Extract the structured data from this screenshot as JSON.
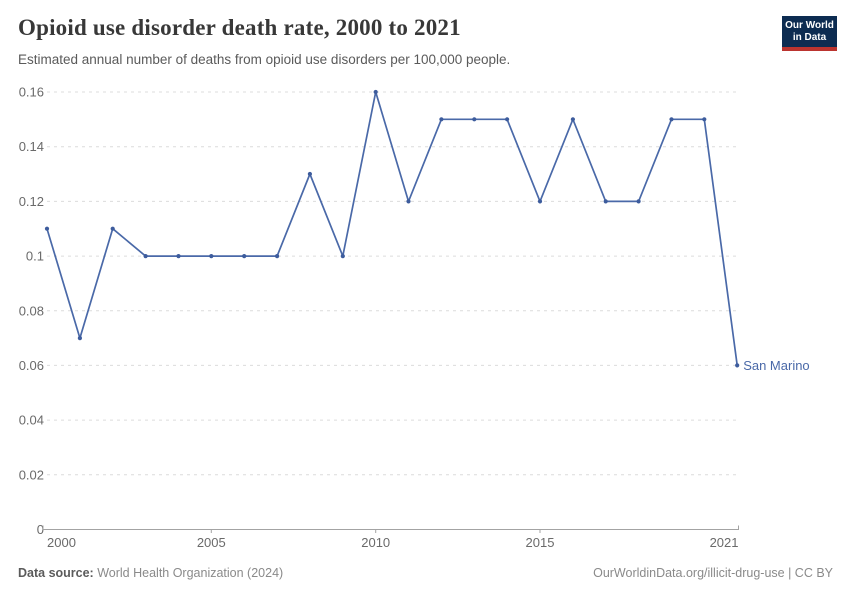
{
  "header": {
    "title": "Opioid use disorder death rate, 2000 to 2021",
    "subtitle": "Estimated annual number of deaths from opioid use disorders per 100,000 people."
  },
  "logo": {
    "line1": "Our World",
    "line2": "in Data"
  },
  "chart_data": {
    "type": "line",
    "title": "Opioid use disorder death rate, 2000 to 2021",
    "xlabel": "",
    "ylabel": "",
    "xlim": [
      2000,
      2021
    ],
    "ylim": [
      0,
      0.16
    ],
    "grid": true,
    "series": [
      {
        "name": "San Marino",
        "x": [
          2000,
          2001,
          2002,
          2003,
          2004,
          2005,
          2006,
          2007,
          2008,
          2009,
          2010,
          2011,
          2012,
          2013,
          2014,
          2015,
          2016,
          2017,
          2018,
          2019,
          2020,
          2021
        ],
        "values": [
          0.11,
          0.07,
          0.11,
          0.1,
          0.1,
          0.1,
          0.1,
          0.1,
          0.13,
          0.1,
          0.16,
          0.12,
          0.15,
          0.15,
          0.15,
          0.12,
          0.15,
          0.12,
          0.12,
          0.15,
          0.15,
          0.06
        ]
      }
    ],
    "yticks": [
      {
        "value": 0,
        "label": "0"
      },
      {
        "value": 0.02,
        "label": "0.02"
      },
      {
        "value": 0.04,
        "label": "0.04"
      },
      {
        "value": 0.06,
        "label": "0.06"
      },
      {
        "value": 0.08,
        "label": "0.08"
      },
      {
        "value": 0.1,
        "label": "0.1"
      },
      {
        "value": 0.12,
        "label": "0.12"
      },
      {
        "value": 0.14,
        "label": "0.14"
      },
      {
        "value": 0.16,
        "label": "0.16"
      }
    ],
    "xticks": [
      {
        "value": 2000,
        "label": "2000",
        "align": "start",
        "tick": false
      },
      {
        "value": 2005,
        "label": "2005",
        "align": "middle",
        "tick": true
      },
      {
        "value": 2010,
        "label": "2010",
        "align": "middle",
        "tick": true
      },
      {
        "value": 2015,
        "label": "2015",
        "align": "middle",
        "tick": true
      },
      {
        "value": 2021,
        "label": "2021",
        "align": "end",
        "tick": false
      }
    ],
    "end_label": "San Marino"
  },
  "footer": {
    "source_label": "Data source:",
    "source_value": "World Health Organization (2024)",
    "attribution": "OurWorldinData.org/illicit-drug-use | CC BY"
  },
  "theme": {
    "line": "#4a69a8",
    "point": "#3d5c9d",
    "grid": "#dcdcdc",
    "axis": "#a3a3a3",
    "tick_text": "#6a6a6a",
    "title_text": "#383838",
    "subtitle_text": "#5a5a5a",
    "footer_text": "#8a8a8a",
    "footer_label": "#5b5b5b",
    "logo_bg": "#0d2c51",
    "logo_bar": "#bb342f"
  }
}
